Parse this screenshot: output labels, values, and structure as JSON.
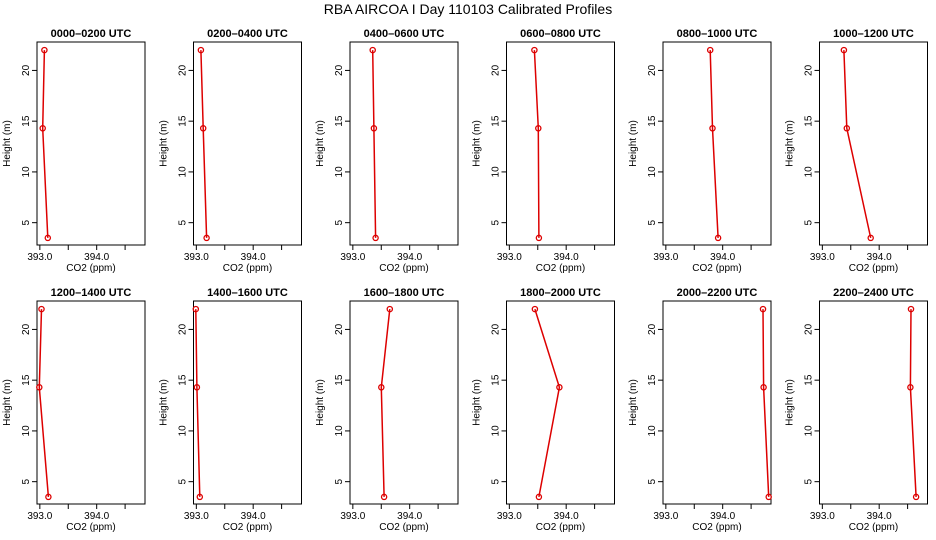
{
  "figure": {
    "title": "RBA AIRCOA I  Day 110103  Calibrated Profiles"
  },
  "colors": {
    "series": "#dd0000",
    "axes": "#000000"
  },
  "chart_data": {
    "type": "line",
    "xlabel": "CO2 (ppm)",
    "ylabel": "Height (m)",
    "xlim": [
      392.95,
      394.85
    ],
    "ylim": [
      2.8,
      22.8
    ],
    "xticks": [
      393.0,
      393.5,
      394.0,
      394.5
    ],
    "xtick_labels": [
      "393.0",
      "",
      "394.0",
      ""
    ],
    "yticks": [
      5,
      10,
      15,
      20
    ],
    "ytick_labels": [
      "5",
      "10",
      "15",
      "20"
    ],
    "heights": [
      3.5,
      14.3,
      22.0
    ],
    "panels": [
      {
        "title": "0000–0200 UTC",
        "co2": [
          393.14,
          393.05,
          393.08
        ]
      },
      {
        "title": "0200–0400 UTC",
        "co2": [
          393.18,
          393.12,
          393.08
        ]
      },
      {
        "title": "0400–0600 UTC",
        "co2": [
          393.4,
          393.37,
          393.35
        ]
      },
      {
        "title": "0600–0800 UTC",
        "co2": [
          393.52,
          393.51,
          393.44
        ]
      },
      {
        "title": "0800–1000 UTC",
        "co2": [
          393.92,
          393.82,
          393.78
        ]
      },
      {
        "title": "1000–1200 UTC",
        "co2": [
          393.85,
          393.43,
          393.38
        ]
      },
      {
        "title": "1200–1400 UTC",
        "co2": [
          393.15,
          392.99,
          393.03
        ]
      },
      {
        "title": "1400–1600 UTC",
        "co2": [
          393.06,
          393.01,
          392.99
        ]
      },
      {
        "title": "1600–1800 UTC",
        "co2": [
          393.55,
          393.5,
          393.65
        ]
      },
      {
        "title": "1800–2000 UTC",
        "co2": [
          393.52,
          393.88,
          393.45
        ]
      },
      {
        "title": "2000–2200 UTC",
        "co2": [
          394.81,
          394.72,
          394.71
        ]
      },
      {
        "title": "2200–2400 UTC",
        "co2": [
          394.65,
          394.55,
          394.56
        ]
      }
    ]
  }
}
